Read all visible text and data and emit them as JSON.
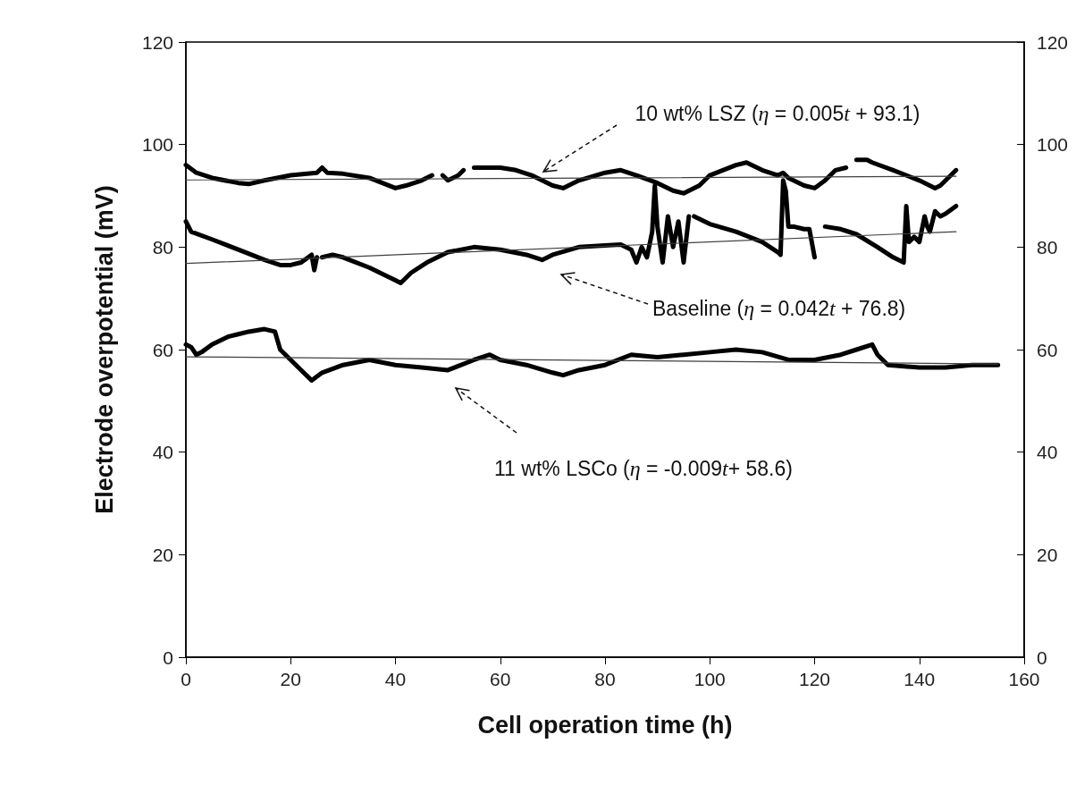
{
  "chart_data": {
    "type": "line",
    "xlabel": "Cell operation time (h)",
    "ylabel": "Electrode overpotential (mV)",
    "xlim": [
      0,
      160
    ],
    "xticks": [
      0,
      20,
      40,
      60,
      80,
      100,
      120,
      140,
      160
    ],
    "ylim": [
      0,
      120
    ],
    "yticks": [
      0,
      20,
      40,
      60,
      80,
      100,
      120
    ],
    "y2lim": [
      0,
      120
    ],
    "y2ticks": [
      0,
      20,
      40,
      60,
      80,
      100,
      120
    ],
    "grid": false,
    "marker": "none",
    "series": [
      {
        "color": "#000000",
        "x": [
          0,
          2,
          5,
          10,
          12,
          15,
          20,
          25,
          26,
          27,
          30,
          35,
          40,
          42,
          45,
          47,
          47.5,
          49,
          50,
          52,
          53,
          53.5,
          55,
          60,
          63,
          66,
          70,
          72,
          75,
          80,
          83,
          86,
          90,
          93,
          95,
          98,
          100,
          105,
          107,
          110,
          113,
          114,
          115,
          118,
          120,
          122,
          124,
          126,
          127,
          128,
          130,
          131,
          135,
          140,
          143,
          144,
          146,
          147
        ],
        "values": [
          96,
          94.5,
          93.5,
          92.5,
          92.3,
          93,
          94,
          94.5,
          95.5,
          94.5,
          94.3,
          93.5,
          91.5,
          92,
          93,
          94,
          null,
          94,
          93,
          94,
          95,
          null,
          95.5,
          95.5,
          95,
          94,
          92,
          91.5,
          93,
          94.5,
          95,
          94,
          92.5,
          91,
          90.5,
          92,
          94,
          96,
          96.5,
          95,
          94,
          94.5,
          93.5,
          92,
          91.5,
          93,
          95,
          95.5,
          null,
          97,
          97,
          96.5,
          95,
          93,
          91.5,
          92,
          94,
          95
        ]
      },
      {
        "color": "#000000",
        "x": [
          0,
          1,
          5,
          10,
          15,
          18,
          20,
          22,
          24,
          24.5,
          25,
          25.5,
          26,
          28,
          30,
          35,
          40,
          41,
          43,
          46,
          50,
          55,
          60,
          65,
          68,
          70,
          75,
          80,
          83,
          85,
          86,
          87,
          88,
          89,
          89.5,
          90,
          91,
          92,
          93,
          94,
          95,
          96,
          96.5,
          97,
          100,
          105,
          110,
          113,
          113.5,
          114,
          114.5,
          115,
          116,
          118,
          119,
          120,
          121,
          122,
          125,
          128,
          132,
          135,
          137,
          137.5,
          138,
          139,
          140,
          141,
          141.5,
          142,
          143,
          144,
          145,
          147
        ],
        "values": [
          85,
          83,
          81.5,
          79.5,
          77.5,
          76.5,
          76.5,
          77,
          78.5,
          75.5,
          78,
          null,
          78,
          78.5,
          78,
          76,
          73.5,
          73,
          75,
          77,
          79,
          80,
          79.5,
          78.5,
          77.5,
          78.5,
          80,
          80.3,
          80.5,
          79.5,
          77,
          80,
          78,
          83,
          92,
          84,
          77,
          86,
          80,
          85,
          77,
          86,
          null,
          86,
          84.5,
          83,
          81,
          79,
          78.5,
          93,
          91,
          84,
          84,
          83.5,
          83.5,
          78,
          null,
          84,
          83.5,
          82.5,
          80,
          78,
          77,
          88,
          81,
          82,
          81,
          86,
          84,
          83,
          87,
          86,
          86.5,
          88
        ]
      },
      {
        "color": "#000000",
        "x": [
          0,
          1,
          2,
          3,
          5,
          8,
          10,
          12,
          15,
          17,
          18,
          20,
          22,
          24,
          26,
          30,
          35,
          40,
          45,
          50,
          55,
          58,
          60,
          65,
          70,
          72,
          75,
          80,
          85,
          90,
          95,
          100,
          105,
          110,
          115,
          120,
          125,
          128,
          131,
          132,
          134,
          140,
          145,
          150,
          155
        ],
        "values": [
          61,
          60.5,
          59,
          59.5,
          61,
          62.5,
          63,
          63.5,
          64,
          63.5,
          60,
          58,
          56,
          54,
          55.5,
          57,
          58,
          57,
          56.5,
          56,
          58,
          59,
          58,
          57,
          55.5,
          55,
          56,
          57,
          59,
          58.5,
          59,
          59.5,
          60,
          59.5,
          58,
          58,
          59,
          60,
          61,
          59,
          57,
          56.5,
          56.5,
          57,
          57
        ]
      },
      {
        "type": "line",
        "color": "#404040",
        "x": [
          0,
          147
        ],
        "values": [
          93.1,
          93.8
        ]
      },
      {
        "type": "line",
        "color": "#404040",
        "x": [
          0,
          147
        ],
        "values": [
          76.8,
          83.0
        ]
      },
      {
        "type": "line",
        "color": "#404040",
        "x": [
          0,
          155
        ],
        "values": [
          58.6,
          57.2
        ]
      }
    ],
    "annotations": [
      "10 wt% LSZ (η = 0.005t + 93.1)",
      "Baseline (η = 0.042t + 76.8)",
      "11 wt% LSCo (η = -0.009t+ 58.6)"
    ]
  }
}
